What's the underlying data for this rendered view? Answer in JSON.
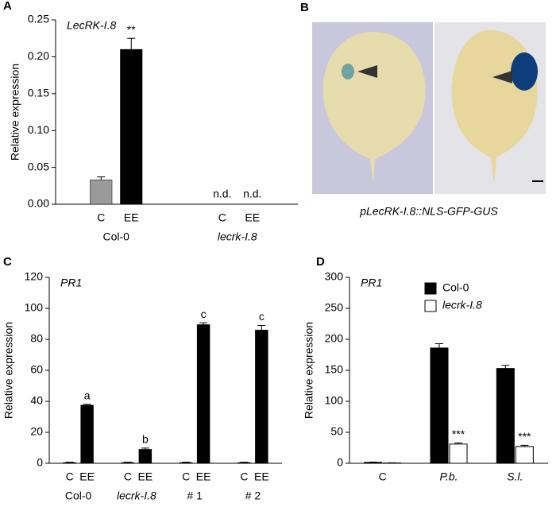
{
  "chart_data": [
    {
      "type": "bar",
      "label": "A",
      "subtitle": "LecRK-I.8",
      "ylabel": "Relative expression",
      "categories": [
        "C",
        "EE",
        "C",
        "EE"
      ],
      "groups": [
        "Col-0",
        "lecrk-I.8"
      ],
      "group_italic": [
        false,
        true
      ],
      "values": [
        0.033,
        0.21,
        null,
        null
      ],
      "errors": [
        0.004,
        0.015,
        null,
        null
      ],
      "annotations": [
        null,
        "**",
        "n.d.",
        "n.d."
      ],
      "colors": [
        "#9a9a9a",
        "#000000",
        "#000000",
        "#000000"
      ],
      "ylim": [
        0,
        0.25
      ],
      "yticks": [
        {
          "value": 0,
          "label": "0.00"
        },
        0.05,
        {
          "value": 0.1,
          "label": "0.10"
        },
        0.15,
        {
          "value": 0.2,
          "label": "0.20"
        },
        0.25
      ]
    },
    {
      "type": "bar",
      "label": "C",
      "subtitle": "PR1",
      "ylabel": "Relative expression",
      "categories": [
        "C",
        "EE",
        "C",
        "EE",
        "C",
        "EE",
        "C",
        "EE"
      ],
      "groups": [
        "Col-0",
        "lecrk-I.8",
        "# 1",
        "# 2"
      ],
      "group_italic": [
        false,
        true,
        false,
        false
      ],
      "values": [
        0.5,
        37.5,
        0.5,
        9,
        0.5,
        89.5,
        0.5,
        86
      ],
      "errors": [
        0.2,
        0.6,
        0.2,
        0.8,
        0.2,
        1.2,
        0.2,
        3
      ],
      "annotations": [
        null,
        "a",
        null,
        "b",
        null,
        "c",
        null,
        "c"
      ],
      "colors": [
        "#000000",
        "#000000",
        "#000000",
        "#000000",
        "#000000",
        "#000000",
        "#000000",
        "#000000"
      ],
      "ylim": [
        0,
        120
      ],
      "yticks": [
        0,
        20,
        40,
        60,
        80,
        100,
        120
      ]
    },
    {
      "type": "grouped_bar",
      "label": "D",
      "subtitle": "PR1",
      "ylabel": "Relative expression",
      "categories": [
        "C",
        "P.b.",
        "S.l."
      ],
      "category_italic": [
        false,
        true,
        true
      ],
      "series": [
        {
          "name": "Col-0",
          "color": "#000000",
          "italic": false,
          "values": [
            1.5,
            186,
            153
          ],
          "errors": [
            0.5,
            7,
            5
          ],
          "annotations": [
            null,
            null,
            null
          ]
        },
        {
          "name": "lecrk-I.8",
          "color": "#ffffff",
          "italic": true,
          "values": [
            0.5,
            31,
            27
          ],
          "errors": [
            0.3,
            2,
            2
          ],
          "annotations": [
            null,
            "***",
            "***"
          ]
        }
      ],
      "legend": "top-right",
      "ylim": [
        0,
        300
      ],
      "yticks": [
        0,
        50,
        100,
        150,
        200,
        250,
        300
      ]
    }
  ],
  "image_panel": {
    "label": "B",
    "caption": "pLecRK-I.8::NLS-GFP-GUS"
  }
}
